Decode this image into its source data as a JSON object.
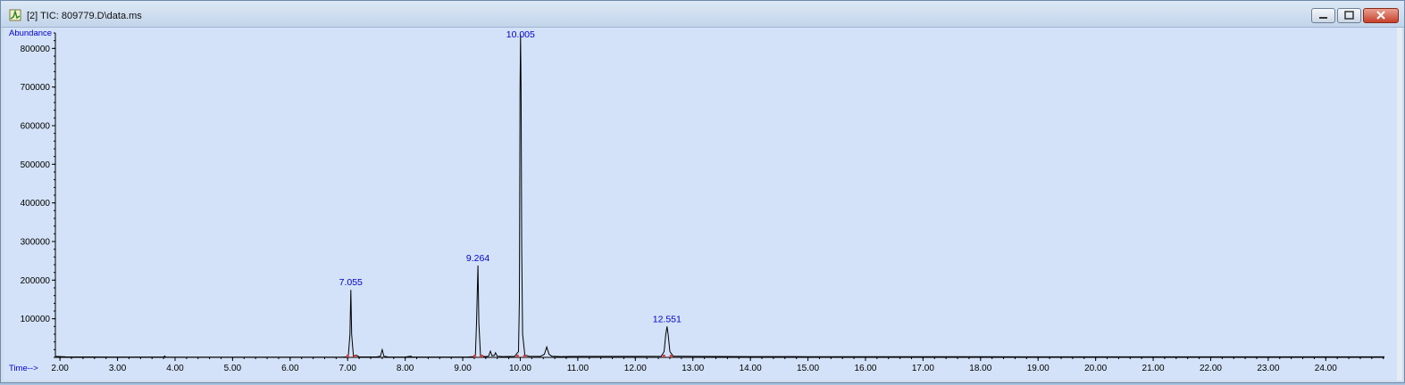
{
  "window": {
    "title": "[2] TIC: 809779.D\\data.ms",
    "controls": {
      "minimize": "minimize",
      "maximize": "maximize",
      "close": "close"
    },
    "icons": {
      "app": "chromatogram-app-icon",
      "minimize": "minimize-icon",
      "maximize": "maximize-icon",
      "close": "close-icon"
    }
  },
  "colors": {
    "trace": "#000000",
    "labels": "#0000cc",
    "background": "#d3e2f8",
    "baseline_marks": "#d04040"
  },
  "chart_data": {
    "type": "line",
    "ylabel": "Abundance",
    "xlabel": "Time-->",
    "xlim": [
      1.92,
      25.02
    ],
    "ylim": [
      0,
      840000
    ],
    "xticks": [
      "2.00",
      "3.00",
      "4.00",
      "5.00",
      "6.00",
      "7.00",
      "8.00",
      "9.00",
      "10.00",
      "11.00",
      "12.00",
      "13.00",
      "14.00",
      "15.00",
      "16.00",
      "17.00",
      "18.00",
      "19.00",
      "20.00",
      "21.00",
      "22.00",
      "23.00",
      "24.00"
    ],
    "yticks": [
      "100000",
      "200000",
      "300000",
      "400000",
      "500000",
      "600000",
      "700000",
      "800000"
    ],
    "peak_labels": [
      {
        "label": "7.055",
        "x": 7.055,
        "y": 175000
      },
      {
        "label": "9.264",
        "x": 9.264,
        "y": 238000
      },
      {
        "label": "10.005",
        "x": 10.005,
        "y": 835000
      },
      {
        "label": "12.551",
        "x": 12.551,
        "y": 80000
      }
    ],
    "trace": [
      [
        1.92,
        2500
      ],
      [
        2.1,
        1500
      ],
      [
        2.5,
        1200
      ],
      [
        3.0,
        900
      ],
      [
        3.5,
        900
      ],
      [
        3.8,
        900
      ],
      [
        3.82,
        3500
      ],
      [
        3.84,
        900
      ],
      [
        4.5,
        800
      ],
      [
        5.0,
        700
      ],
      [
        6.0,
        700
      ],
      [
        6.9,
        700
      ],
      [
        7.01,
        1500
      ],
      [
        7.04,
        60000
      ],
      [
        7.055,
        175000
      ],
      [
        7.07,
        60000
      ],
      [
        7.1,
        2500
      ],
      [
        7.15,
        6000
      ],
      [
        7.2,
        1200
      ],
      [
        7.5,
        1200
      ],
      [
        7.57,
        3000
      ],
      [
        7.6,
        20000
      ],
      [
        7.63,
        3000
      ],
      [
        7.7,
        1200
      ],
      [
        8.0,
        1000
      ],
      [
        8.1,
        3000
      ],
      [
        8.12,
        1000
      ],
      [
        8.5,
        1000
      ],
      [
        8.8,
        1000
      ],
      [
        9.1,
        1200
      ],
      [
        9.22,
        2000
      ],
      [
        9.24,
        90000
      ],
      [
        9.264,
        238000
      ],
      [
        9.28,
        90000
      ],
      [
        9.31,
        3000
      ],
      [
        9.4,
        2000
      ],
      [
        9.45,
        3000
      ],
      [
        9.48,
        16000
      ],
      [
        9.51,
        4000
      ],
      [
        9.55,
        5000
      ],
      [
        9.57,
        12000
      ],
      [
        9.6,
        3000
      ],
      [
        9.7,
        2000
      ],
      [
        9.9,
        2500
      ],
      [
        9.97,
        15000
      ],
      [
        9.985,
        150000
      ],
      [
        9.995,
        690000
      ],
      [
        10.005,
        835000
      ],
      [
        10.015,
        690000
      ],
      [
        10.025,
        280000
      ],
      [
        10.04,
        60000
      ],
      [
        10.08,
        6000
      ],
      [
        10.15,
        3000
      ],
      [
        10.35,
        2500
      ],
      [
        10.42,
        8000
      ],
      [
        10.46,
        27000
      ],
      [
        10.5,
        8000
      ],
      [
        10.55,
        3000
      ],
      [
        10.7,
        2000
      ],
      [
        11.0,
        2500
      ],
      [
        12.0,
        2500
      ],
      [
        12.45,
        3000
      ],
      [
        12.5,
        15000
      ],
      [
        12.53,
        60000
      ],
      [
        12.551,
        80000
      ],
      [
        12.57,
        60000
      ],
      [
        12.6,
        15000
      ],
      [
        12.66,
        3000
      ],
      [
        13.0,
        2500
      ],
      [
        14.0,
        2000
      ],
      [
        15.0,
        1800
      ],
      [
        16.0,
        1800
      ],
      [
        18.0,
        1600
      ],
      [
        20.0,
        1500
      ],
      [
        22.0,
        1400
      ],
      [
        24.0,
        1300
      ],
      [
        25.02,
        1300
      ]
    ]
  }
}
